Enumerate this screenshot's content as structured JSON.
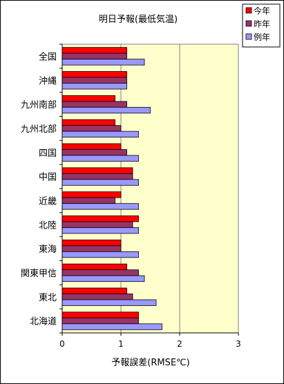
{
  "chart_data": {
    "type": "bar",
    "orientation": "horizontal",
    "title": "明日予報(最低気温)",
    "xlabel": "予報誤差(RMSE℃)",
    "ylabel": "",
    "xlim": [
      0,
      3
    ],
    "xticks": [
      "0",
      "1",
      "2",
      "3"
    ],
    "grid": "vertical lines at 1, 2",
    "legend_position": "top-right",
    "categories": [
      "全国",
      "沖縄",
      "九州南部",
      "九州北部",
      "四国",
      "中国",
      "近畿",
      "北陸",
      "東海",
      "関東甲信",
      "東北",
      "北海道"
    ],
    "series": [
      {
        "name": "今年",
        "color": "#ff0000",
        "values": [
          1.1,
          1.1,
          0.9,
          0.9,
          1.0,
          1.2,
          1.0,
          1.3,
          1.0,
          1.1,
          1.1,
          1.3
        ]
      },
      {
        "name": "昨年",
        "color": "#993366",
        "values": [
          1.1,
          1.1,
          1.1,
          1.0,
          1.1,
          1.2,
          0.9,
          1.2,
          1.0,
          1.3,
          1.2,
          1.3
        ]
      },
      {
        "name": "例年",
        "color": "#9999ff",
        "values": [
          1.4,
          1.1,
          1.5,
          1.3,
          1.3,
          1.3,
          1.3,
          1.3,
          1.3,
          1.4,
          1.6,
          1.7
        ]
      }
    ],
    "plot_background": "#ffffcc"
  }
}
